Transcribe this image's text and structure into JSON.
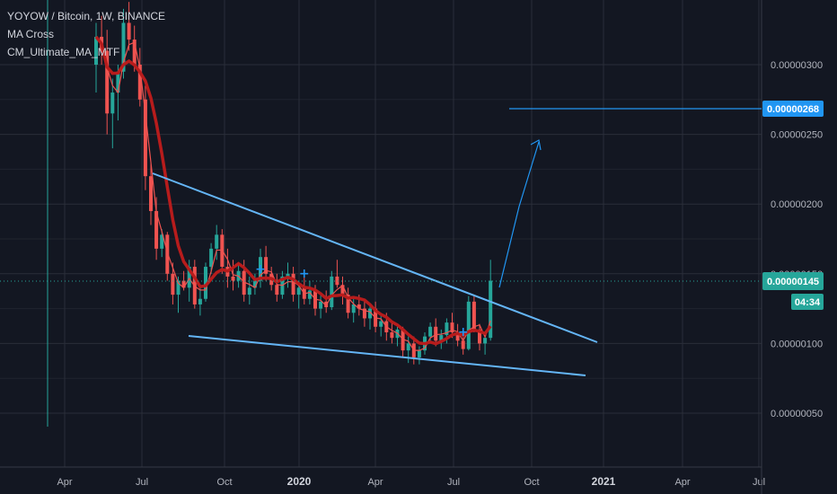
{
  "legend": {
    "symbol_line": "YOYOW / Bitcoin, 1W, BINANCE",
    "indicator_1": "MA Cross",
    "indicator_2": "CM_Ultimate_MA_MTF"
  },
  "colors": {
    "background": "#131722",
    "grid": "#2a2e39",
    "bull": "#26a69a",
    "bear": "#ef5350",
    "ma_slow": "#b71c1c",
    "ma_fast": "#ef5350",
    "trendline": "#64b5f6",
    "price_label": "#26a69a",
    "target_label": "#2196f3"
  },
  "price_label": {
    "value": "0.00000145",
    "countdown": "04:34"
  },
  "target_label": {
    "value": "0.00000268"
  },
  "chart_data": {
    "type": "candlestick",
    "title": "YOYOW / Bitcoin, 1W, BINANCE",
    "x_ticks": [
      "Apr",
      "Jul",
      "Oct",
      "2020",
      "Apr",
      "Jul",
      "Oct",
      "2021",
      "Apr",
      "Jul"
    ],
    "y_ticks": [
      "0.00000300",
      "0.00000250",
      "0.00000200",
      "0.00000150",
      "0.00000100",
      "0.00000050"
    ],
    "y_tick_values": [
      300,
      250,
      200,
      150,
      100,
      50
    ],
    "y_unit_note": "values in satoshi (x1e-8 BTC)",
    "ylim": [
      15,
      340
    ],
    "x_range_weeks": [
      0,
      115
    ],
    "candles": [
      [
        300,
        330,
        280,
        320
      ],
      [
        320,
        335,
        300,
        310
      ],
      [
        310,
        325,
        250,
        265
      ],
      [
        265,
        290,
        240,
        280
      ],
      [
        280,
        300,
        260,
        295
      ],
      [
        295,
        340,
        290,
        330
      ],
      [
        330,
        345,
        310,
        318
      ],
      [
        318,
        328,
        295,
        300
      ],
      [
        300,
        312,
        270,
        275
      ],
      [
        275,
        285,
        210,
        220
      ],
      [
        220,
        230,
        185,
        195
      ],
      [
        195,
        205,
        160,
        168
      ],
      [
        168,
        182,
        162,
        178
      ],
      [
        178,
        180,
        145,
        150
      ],
      [
        150,
        158,
        128,
        135
      ],
      [
        135,
        148,
        122,
        145
      ],
      [
        145,
        152,
        138,
        140
      ],
      [
        140,
        160,
        130,
        155
      ],
      [
        155,
        160,
        125,
        128
      ],
      [
        128,
        140,
        120,
        132
      ],
      [
        132,
        158,
        130,
        155
      ],
      [
        155,
        172,
        150,
        168
      ],
      [
        168,
        185,
        160,
        178
      ],
      [
        178,
        182,
        150,
        155
      ],
      [
        155,
        168,
        140,
        148
      ],
      [
        148,
        160,
        138,
        145
      ],
      [
        145,
        158,
        140,
        152
      ],
      [
        152,
        160,
        130,
        135
      ],
      [
        135,
        148,
        128,
        140
      ],
      [
        140,
        150,
        135,
        145
      ],
      [
        145,
        168,
        140,
        162
      ],
      [
        162,
        170,
        145,
        150
      ],
      [
        150,
        155,
        138,
        142
      ],
      [
        142,
        150,
        130,
        135
      ],
      [
        135,
        152,
        132,
        148
      ],
      [
        148,
        158,
        140,
        150
      ],
      [
        150,
        155,
        130,
        135
      ],
      [
        135,
        145,
        125,
        140
      ],
      [
        140,
        148,
        128,
        132
      ],
      [
        132,
        145,
        128,
        138
      ],
      [
        138,
        142,
        120,
        125
      ],
      [
        125,
        135,
        118,
        130
      ],
      [
        130,
        138,
        122,
        126
      ],
      [
        126,
        152,
        124,
        148
      ],
      [
        148,
        160,
        140,
        142
      ],
      [
        142,
        148,
        128,
        135
      ],
      [
        135,
        140,
        118,
        122
      ],
      [
        122,
        132,
        115,
        128
      ],
      [
        128,
        135,
        120,
        125
      ],
      [
        125,
        132,
        112,
        118
      ],
      [
        118,
        128,
        110,
        125
      ],
      [
        125,
        130,
        108,
        112
      ],
      [
        112,
        120,
        105,
        116
      ],
      [
        116,
        122,
        102,
        108
      ],
      [
        108,
        115,
        100,
        104
      ],
      [
        104,
        112,
        98,
        110
      ],
      [
        110,
        112,
        90,
        95
      ],
      [
        95,
        105,
        86,
        100
      ],
      [
        100,
        105,
        85,
        90
      ],
      [
        90,
        98,
        85,
        95
      ],
      [
        95,
        108,
        92,
        105
      ],
      [
        105,
        115,
        100,
        112
      ],
      [
        112,
        118,
        98,
        102
      ],
      [
        102,
        110,
        96,
        106
      ],
      [
        106,
        118,
        100,
        115
      ],
      [
        115,
        122,
        104,
        108
      ],
      [
        108,
        114,
        98,
        102
      ],
      [
        102,
        110,
        92,
        96
      ],
      [
        96,
        134,
        95,
        130
      ],
      [
        130,
        134,
        108,
        110
      ],
      [
        110,
        114,
        95,
        100
      ],
      [
        100,
        108,
        92,
        104
      ],
      [
        104,
        160,
        102,
        145
      ]
    ],
    "ma_fast_desc": "thin red moving average",
    "ma_slow_desc": "thick dark red moving average",
    "trendlines": [
      {
        "name": "upper",
        "from": [
          10.5,
          222
        ],
        "to": [
          69,
          102
        ]
      },
      {
        "name": "lower",
        "from": [
          13,
          104
        ],
        "to": [
          68,
          78
        ]
      },
      {
        "name": "projection",
        "from": [
          56,
          152.0
        ],
        "to": [
          61,
          244
        ]
      }
    ],
    "hline": {
      "value": 268
    },
    "grid": true
  }
}
